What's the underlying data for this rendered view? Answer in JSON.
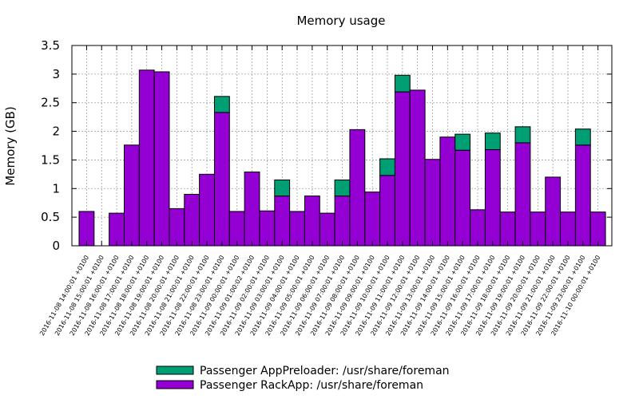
{
  "chart_data": {
    "type": "bar",
    "stacked": true,
    "title": "Memory usage",
    "xlabel": "",
    "ylabel": "Memory (GB)",
    "ylim": [
      0,
      3.5
    ],
    "yticks": [
      0,
      0.5,
      1,
      1.5,
      2,
      2.5,
      3,
      3.5
    ],
    "ytick_labels": [
      "0",
      "0.5",
      "1",
      "1.5",
      "2",
      "2.5",
      "3",
      "3.5"
    ],
    "grid": true,
    "legend_position": "bottom-center",
    "categories": [
      "2016-11-08 14:00:01 +0100",
      "2016-11-08 15:00:01 +0100",
      "2016-11-08 16:00:01 +0100",
      "2016-11-08 17:00:01 +0100",
      "2016-11-08 18:00:01 +0100",
      "2016-11-08 19:00:01 +0100",
      "2016-11-08 20:00:01 +0100",
      "2016-11-08 21:00:01 +0100",
      "2016-11-08 22:00:01 +0100",
      "2016-11-08 23:00:01 +0100",
      "2016-11-09 00:00:01 +0100",
      "2016-11-09 01:00:02 +0100",
      "2016-11-09 02:00:01 +0100",
      "2016-11-09 03:00:01 +0100",
      "2016-11-09 04:00:01 +0100",
      "2016-11-09 05:00:01 +0100",
      "2016-11-09 06:00:01 +0100",
      "2016-11-09 07:00:01 +0100",
      "2016-11-09 08:00:01 +0100",
      "2016-11-09 09:00:01 +0100",
      "2016-11-09 10:00:01 +0100",
      "2016-11-09 11:00:01 +0100",
      "2016-11-09 12:00:01 +0100",
      "2016-11-09 13:00:01 +0100",
      "2016-11-09 14:00:01 +0100",
      "2016-11-09 15:00:01 +0100",
      "2016-11-09 16:00:01 +0100",
      "2016-11-09 17:00:01 +0100",
      "2016-11-09 18:00:01 +0100",
      "2016-11-09 19:00:01 +0100",
      "2016-11-09 20:00:01 +0100",
      "2016-11-09 21:00:01 +0100",
      "2016-11-09 22:00:01 +0100",
      "2016-11-09 23:00:01 +0100",
      "2016-11-10 00:00:01 +0100"
    ],
    "series": [
      {
        "name": "Passenger RackApp: /usr/share/foreman",
        "color": "#9400d3",
        "values": [
          0.6,
          0,
          0.57,
          1.76,
          3.07,
          3.04,
          0.65,
          0.9,
          1.25,
          2.33,
          0.6,
          1.29,
          0.61,
          0.87,
          0.6,
          0.87,
          0.57,
          0.87,
          2.03,
          0.94,
          1.23,
          2.69,
          2.72,
          1.51,
          1.9,
          1.67,
          0.63,
          1.68,
          0.59,
          1.8,
          0.59,
          1.2,
          0.59,
          1.76,
          0.59
        ]
      },
      {
        "name": "Passenger AppPreloader: /usr/share/foreman",
        "color": "#009e73",
        "values": [
          0,
          0,
          0,
          0,
          0,
          0,
          0,
          0,
          0,
          0.28,
          0,
          0,
          0,
          0.28,
          0,
          0,
          0,
          0.28,
          0,
          0,
          0.29,
          0.29,
          0,
          0,
          0,
          0.28,
          0,
          0.29,
          0,
          0.28,
          0,
          0,
          0,
          0.28,
          0
        ]
      }
    ],
    "legend_order": [
      1,
      0
    ]
  }
}
